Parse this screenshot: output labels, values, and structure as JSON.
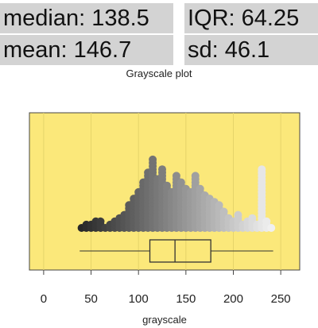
{
  "stats": {
    "median": "median: 138.5",
    "iqr": "IQR: 64.25",
    "mean": "mean: 146.7",
    "sd": "sd: 46.1"
  },
  "colors": {
    "panel_background": "#fbe87a",
    "stats_background": "#d3d3d3",
    "box_stroke": "#333333"
  },
  "chart_data": {
    "type": "strip_box",
    "title": "Grayscale plot",
    "xlabel": "grayscale",
    "ylabel": "",
    "xlim": [
      -15,
      270
    ],
    "xticks": [
      0,
      50,
      100,
      150,
      200,
      250
    ],
    "grid": true,
    "point_color_encodes_value": true,
    "box": {
      "min": 38,
      "q1": 112,
      "median": 138.5,
      "q3": 176.25,
      "max": 242
    },
    "points": [
      {
        "x": 40,
        "count": 1
      },
      {
        "x": 45,
        "count": 2
      },
      {
        "x": 50,
        "count": 2
      },
      {
        "x": 55,
        "count": 3
      },
      {
        "x": 60,
        "count": 3
      },
      {
        "x": 65,
        "count": 1
      },
      {
        "x": 70,
        "count": 2
      },
      {
        "x": 75,
        "count": 3
      },
      {
        "x": 80,
        "count": 4
      },
      {
        "x": 85,
        "count": 5
      },
      {
        "x": 90,
        "count": 8
      },
      {
        "x": 95,
        "count": 10
      },
      {
        "x": 100,
        "count": 12
      },
      {
        "x": 105,
        "count": 15
      },
      {
        "x": 110,
        "count": 18
      },
      {
        "x": 115,
        "count": 22
      },
      {
        "x": 120,
        "count": 16
      },
      {
        "x": 125,
        "count": 19
      },
      {
        "x": 130,
        "count": 14
      },
      {
        "x": 135,
        "count": 12
      },
      {
        "x": 140,
        "count": 17
      },
      {
        "x": 145,
        "count": 15
      },
      {
        "x": 150,
        "count": 13
      },
      {
        "x": 155,
        "count": 12
      },
      {
        "x": 160,
        "count": 17
      },
      {
        "x": 165,
        "count": 13
      },
      {
        "x": 170,
        "count": 11
      },
      {
        "x": 175,
        "count": 10
      },
      {
        "x": 180,
        "count": 9
      },
      {
        "x": 185,
        "count": 8
      },
      {
        "x": 190,
        "count": 6
      },
      {
        "x": 195,
        "count": 4
      },
      {
        "x": 200,
        "count": 3
      },
      {
        "x": 205,
        "count": 5
      },
      {
        "x": 210,
        "count": 2
      },
      {
        "x": 215,
        "count": 3
      },
      {
        "x": 220,
        "count": 4
      },
      {
        "x": 225,
        "count": 2
      },
      {
        "x": 230,
        "count": 19
      },
      {
        "x": 235,
        "count": 3
      },
      {
        "x": 240,
        "count": 1
      }
    ]
  }
}
